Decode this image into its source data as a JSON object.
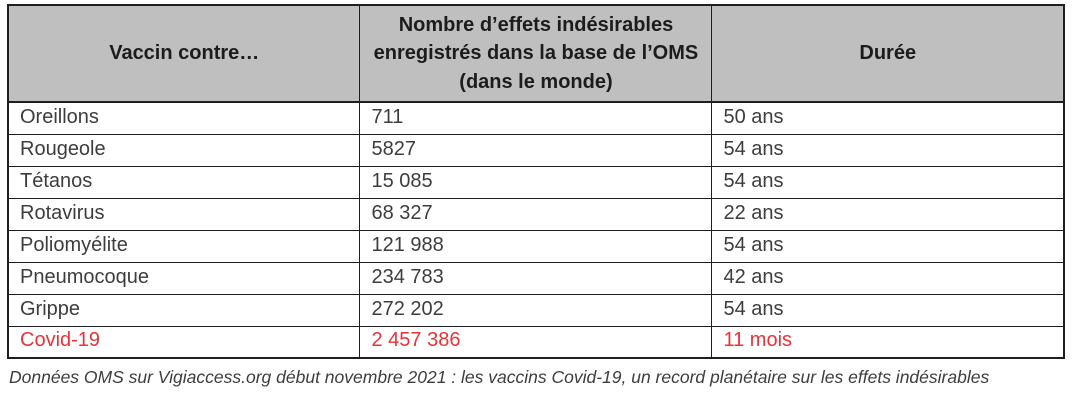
{
  "table": {
    "header": {
      "vaccine": "Vaccin contre…",
      "count": "Nombre d’effets indésirables enregistrés dans la base de l’OMS (dans le monde)",
      "duration": "Durée"
    },
    "rows": [
      {
        "vaccine": "Oreillons",
        "count": "711",
        "duration": "50 ans"
      },
      {
        "vaccine": "Rougeole",
        "count": "5827",
        "duration": "54 ans"
      },
      {
        "vaccine": "Tétanos",
        "count": "15 085",
        "duration": "54 ans"
      },
      {
        "vaccine": "Rotavirus",
        "count": "68 327",
        "duration": "22 ans"
      },
      {
        "vaccine": "Poliomyélite",
        "count": "121 988",
        "duration": "54 ans"
      },
      {
        "vaccine": "Pneumocoque",
        "count": "234 783",
        "duration": "42 ans"
      },
      {
        "vaccine": "Grippe",
        "count": "272 202",
        "duration": "54 ans"
      },
      {
        "vaccine": "Covid-19",
        "count": "2 457 386",
        "duration": "11 mois",
        "highlight": true
      }
    ]
  },
  "footer": {
    "note": "Données OMS sur Vigiaccess.org début novembre 2021 : les vaccins Covid-19, un record planétaire sur les effets indésirables"
  },
  "colors": {
    "header_bg": "#bfbfbf",
    "border": "#1f1f1f",
    "text": "#3d3d3d",
    "highlight": "#ed3237"
  }
}
